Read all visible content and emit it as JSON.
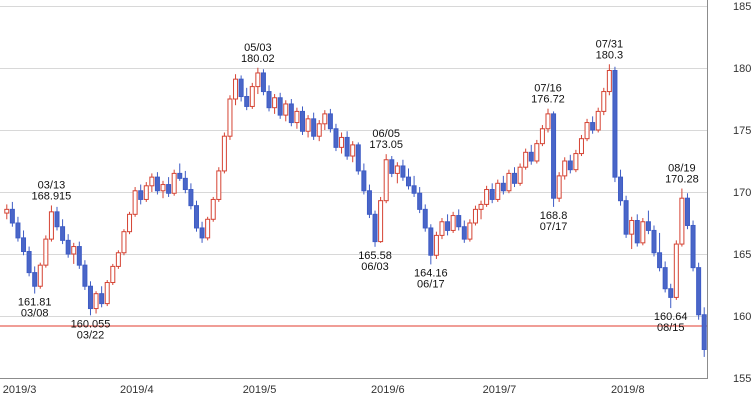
{
  "chart": {
    "background": "#ffffff",
    "up_color": "#d54333",
    "up_fill": "#ffffff",
    "down_color": "#3e5cc5",
    "down_fill": "#4a66c8",
    "grid_color": "#d8d8d8",
    "axis_color": "#8c8c8c",
    "text_color": "#333333",
    "annotation_color": "#111111",
    "price_line_color": "#e03b2e",
    "price_line_value": 159.2
  },
  "chart_data": {
    "type": "candlestick",
    "title": "",
    "xlabel": "",
    "ylabel": "",
    "ylim": [
      155,
      185
    ],
    "yticks": [
      155,
      160,
      165,
      170,
      175,
      180,
      185
    ],
    "x_axis": {
      "ticks": [
        {
          "label": "2019/3",
          "index": 0
        },
        {
          "label": "2019/4",
          "index": 21
        },
        {
          "label": "2019/5",
          "index": 43
        },
        {
          "label": "2019/6",
          "index": 66
        },
        {
          "label": "2019/7",
          "index": 86
        },
        {
          "label": "2019/8",
          "index": 109
        }
      ]
    },
    "candles": [
      [
        "03/01",
        168.3,
        169.0,
        167.8,
        168.6
      ],
      [
        "03/04",
        168.6,
        169.2,
        167.2,
        167.5
      ],
      [
        "03/05",
        167.5,
        168.0,
        166.0,
        166.3
      ],
      [
        "03/06",
        166.3,
        166.9,
        164.9,
        165.2
      ],
      [
        "03/07",
        165.2,
        165.6,
        163.2,
        163.5
      ],
      [
        "03/08",
        163.5,
        164.0,
        161.81,
        162.4
      ],
      [
        "03/11",
        162.4,
        164.3,
        162.2,
        164.1
      ],
      [
        "03/12",
        164.1,
        166.5,
        163.9,
        166.2
      ],
      [
        "03/13",
        166.2,
        168.915,
        166.0,
        168.4
      ],
      [
        "03/14",
        168.4,
        168.8,
        166.9,
        167.2
      ],
      [
        "03/15",
        167.2,
        167.8,
        165.8,
        166.1
      ],
      [
        "03/18",
        166.1,
        166.6,
        164.7,
        165.0
      ],
      [
        "03/19",
        165.0,
        165.9,
        164.2,
        165.6
      ],
      [
        "03/20",
        165.6,
        166.0,
        163.8,
        164.1
      ],
      [
        "03/21",
        164.1,
        164.5,
        162.1,
        162.4
      ],
      [
        "03/22",
        162.4,
        162.8,
        160.055,
        160.6
      ],
      [
        "03/25",
        160.6,
        162.0,
        160.2,
        161.8
      ],
      [
        "03/26",
        161.8,
        162.4,
        160.7,
        161.0
      ],
      [
        "03/27",
        161.0,
        162.9,
        160.8,
        162.7
      ],
      [
        "03/28",
        162.7,
        164.2,
        162.5,
        164.0
      ],
      [
        "03/29",
        164.0,
        165.3,
        163.8,
        165.1
      ],
      [
        "04/01",
        165.1,
        167.0,
        164.9,
        166.8
      ],
      [
        "04/02",
        166.8,
        168.4,
        166.6,
        168.2
      ],
      [
        "04/03",
        168.2,
        170.4,
        168.0,
        170.1
      ],
      [
        "04/04",
        170.1,
        170.6,
        169.0,
        169.4
      ],
      [
        "04/05",
        169.4,
        170.8,
        169.2,
        170.5
      ],
      [
        "04/08",
        170.5,
        171.5,
        170.0,
        171.2
      ],
      [
        "04/09",
        171.2,
        171.6,
        169.8,
        170.1
      ],
      [
        "04/10",
        170.1,
        170.9,
        169.5,
        170.6
      ],
      [
        "04/11",
        170.6,
        171.2,
        169.6,
        169.9
      ],
      [
        "04/12",
        169.9,
        171.8,
        169.7,
        171.5
      ],
      [
        "04/15",
        171.5,
        172.3,
        170.9,
        171.1
      ],
      [
        "04/16",
        171.1,
        171.7,
        169.9,
        170.2
      ],
      [
        "04/17",
        170.2,
        170.7,
        168.6,
        168.9
      ],
      [
        "04/18",
        168.9,
        169.3,
        166.8,
        167.1
      ],
      [
        "04/19",
        167.1,
        167.6,
        165.9,
        166.3
      ],
      [
        "04/22",
        166.3,
        168.0,
        166.1,
        167.8
      ],
      [
        "04/23",
        167.8,
        169.6,
        167.6,
        169.4
      ],
      [
        "04/24",
        169.4,
        172.0,
        169.2,
        171.7
      ],
      [
        "04/25",
        171.7,
        174.8,
        171.5,
        174.5
      ],
      [
        "04/26",
        174.5,
        177.8,
        174.2,
        177.5
      ],
      [
        "04/29",
        177.5,
        179.5,
        177.0,
        179.1
      ],
      [
        "04/30",
        179.1,
        179.4,
        177.3,
        177.7
      ],
      [
        "05/01",
        177.7,
        178.4,
        176.6,
        176.9
      ],
      [
        "05/02",
        176.9,
        178.8,
        176.7,
        178.5
      ],
      [
        "05/03",
        178.5,
        180.02,
        177.9,
        179.6
      ],
      [
        "05/06",
        179.6,
        179.9,
        177.8,
        178.1
      ],
      [
        "05/07",
        178.1,
        178.6,
        176.5,
        176.8
      ],
      [
        "05/08",
        176.8,
        177.9,
        176.3,
        177.6
      ],
      [
        "05/09",
        177.6,
        178.0,
        175.9,
        176.2
      ],
      [
        "05/10",
        176.2,
        177.4,
        175.7,
        177.1
      ],
      [
        "05/13",
        177.1,
        177.5,
        175.3,
        175.6
      ],
      [
        "05/14",
        175.6,
        176.8,
        175.1,
        176.5
      ],
      [
        "05/15",
        176.5,
        176.9,
        174.6,
        174.9
      ],
      [
        "05/16",
        174.9,
        176.2,
        174.4,
        175.9
      ],
      [
        "05/17",
        175.9,
        176.4,
        174.2,
        174.5
      ],
      [
        "05/20",
        174.5,
        175.8,
        174.1,
        175.5
      ],
      [
        "05/21",
        175.5,
        176.6,
        175.0,
        176.3
      ],
      [
        "05/22",
        176.3,
        176.7,
        174.8,
        175.1
      ],
      [
        "05/23",
        175.1,
        175.5,
        173.3,
        173.6
      ],
      [
        "05/24",
        173.6,
        174.8,
        173.1,
        174.4
      ],
      [
        "05/27",
        174.4,
        174.9,
        172.6,
        172.9
      ],
      [
        "05/28",
        172.9,
        174.1,
        172.4,
        173.8
      ],
      [
        "05/29",
        173.8,
        174.0,
        171.4,
        171.7
      ],
      [
        "05/30",
        171.7,
        172.3,
        169.8,
        170.1
      ],
      [
        "05/31",
        170.1,
        170.6,
        167.9,
        168.2
      ],
      [
        "06/03",
        168.2,
        168.5,
        165.58,
        166.0
      ],
      [
        "06/04",
        166.0,
        169.6,
        165.9,
        169.3
      ],
      [
        "06/05",
        169.3,
        173.05,
        169.1,
        172.6
      ],
      [
        "06/06",
        172.6,
        172.9,
        171.2,
        171.5
      ],
      [
        "06/07",
        171.5,
        172.4,
        170.7,
        172.1
      ],
      [
        "06/10",
        172.1,
        172.6,
        170.9,
        171.2
      ],
      [
        "06/11",
        171.2,
        171.9,
        170.2,
        170.5
      ],
      [
        "06/12",
        170.5,
        171.3,
        169.6,
        169.9
      ],
      [
        "06/13",
        169.9,
        170.4,
        168.3,
        168.6
      ],
      [
        "06/14",
        168.6,
        169.0,
        166.8,
        167.1
      ],
      [
        "06/17",
        167.1,
        167.4,
        164.16,
        164.9
      ],
      [
        "06/18",
        164.9,
        166.8,
        164.6,
        166.5
      ],
      [
        "06/19",
        166.5,
        167.9,
        166.2,
        167.6
      ],
      [
        "06/20",
        167.6,
        168.2,
        166.5,
        166.9
      ],
      [
        "06/21",
        166.9,
        168.4,
        166.7,
        168.1
      ],
      [
        "06/24",
        168.1,
        168.6,
        166.9,
        167.2
      ],
      [
        "06/25",
        167.2,
        167.7,
        165.9,
        166.2
      ],
      [
        "06/26",
        166.2,
        167.8,
        166.0,
        167.5
      ],
      [
        "06/27",
        167.5,
        168.9,
        167.3,
        168.6
      ],
      [
        "06/28",
        168.6,
        169.3,
        167.8,
        169.0
      ],
      [
        "07/01",
        169.0,
        170.5,
        168.8,
        170.2
      ],
      [
        "07/02",
        170.2,
        170.7,
        169.1,
        169.4
      ],
      [
        "07/03",
        169.4,
        171.0,
        169.2,
        170.7
      ],
      [
        "07/04",
        170.7,
        171.3,
        169.8,
        170.1
      ],
      [
        "07/05",
        170.1,
        171.8,
        169.9,
        171.5
      ],
      [
        "07/08",
        171.5,
        172.0,
        170.4,
        170.7
      ],
      [
        "07/09",
        170.7,
        172.3,
        170.5,
        172.0
      ],
      [
        "07/10",
        172.0,
        173.5,
        171.8,
        173.2
      ],
      [
        "07/11",
        173.2,
        173.8,
        172.2,
        172.5
      ],
      [
        "07/12",
        172.5,
        174.2,
        172.3,
        173.9
      ],
      [
        "07/15",
        173.9,
        175.4,
        173.7,
        175.1
      ],
      [
        "07/16",
        175.1,
        176.72,
        174.8,
        176.3
      ],
      [
        "07/17",
        176.3,
        176.5,
        168.8,
        169.5
      ],
      [
        "07/18",
        169.5,
        171.6,
        169.2,
        171.3
      ],
      [
        "07/19",
        171.3,
        172.8,
        171.0,
        172.5
      ],
      [
        "07/22",
        172.5,
        173.0,
        171.5,
        171.8
      ],
      [
        "07/23",
        171.8,
        173.4,
        171.6,
        173.1
      ],
      [
        "07/24",
        173.1,
        174.6,
        172.9,
        174.3
      ],
      [
        "07/25",
        174.3,
        175.9,
        174.1,
        175.6
      ],
      [
        "07/26",
        175.6,
        176.1,
        174.7,
        175.0
      ],
      [
        "07/29",
        175.0,
        176.8,
        174.8,
        176.5
      ],
      [
        "07/30",
        176.5,
        178.4,
        176.2,
        178.1
      ],
      [
        "07/31",
        178.1,
        180.3,
        177.8,
        179.8
      ],
      [
        "08/01",
        179.8,
        180.1,
        170.8,
        171.2
      ],
      [
        "08/02",
        171.2,
        171.8,
        168.9,
        169.3
      ],
      [
        "08/05",
        169.3,
        169.7,
        166.3,
        166.6
      ],
      [
        "08/06",
        166.6,
        168.0,
        165.4,
        167.7
      ],
      [
        "08/07",
        167.7,
        168.2,
        165.6,
        165.9
      ],
      [
        "08/08",
        165.9,
        167.9,
        165.7,
        167.6
      ],
      [
        "08/09",
        167.6,
        168.5,
        166.6,
        166.9
      ],
      [
        "08/12",
        166.9,
        167.3,
        164.8,
        165.1
      ],
      [
        "08/13",
        165.1,
        166.7,
        163.6,
        163.9
      ],
      [
        "08/14",
        163.9,
        164.4,
        161.9,
        162.2
      ],
      [
        "08/15",
        162.2,
        162.6,
        160.64,
        161.5
      ],
      [
        "08/16",
        161.5,
        166.1,
        161.3,
        165.8
      ],
      [
        "08/19",
        165.8,
        170.28,
        165.6,
        169.5
      ],
      [
        "08/20",
        169.5,
        169.9,
        167.0,
        167.3
      ],
      [
        "08/21",
        167.3,
        167.7,
        163.6,
        163.9
      ],
      [
        "08/22",
        163.9,
        164.3,
        159.7,
        160.1
      ],
      [
        "08/23",
        160.1,
        160.7,
        156.7,
        157.3
      ]
    ],
    "annotations": [
      {
        "date": "03/13",
        "lines": [
          "03/13",
          "168.915"
        ],
        "position": "above"
      },
      {
        "date": "03/08",
        "lines": [
          "161.81",
          "03/08"
        ],
        "position": "below"
      },
      {
        "date": "03/22",
        "lines": [
          "160.055",
          "03/22"
        ],
        "position": "below"
      },
      {
        "date": "05/03",
        "lines": [
          "05/03",
          "180.02"
        ],
        "position": "above"
      },
      {
        "date": "06/05",
        "lines": [
          "06/05",
          "173.05"
        ],
        "position": "above"
      },
      {
        "date": "06/03",
        "lines": [
          "165.58",
          "06/03"
        ],
        "position": "below"
      },
      {
        "date": "06/17",
        "lines": [
          "164.16",
          "06/17"
        ],
        "position": "below"
      },
      {
        "date": "07/16",
        "lines": [
          "07/16",
          "176.72"
        ],
        "position": "above"
      },
      {
        "date": "07/17",
        "lines": [
          "168.8",
          "07/17"
        ],
        "position": "below"
      },
      {
        "date": "07/31",
        "lines": [
          "07/31",
          "180.3"
        ],
        "position": "above"
      },
      {
        "date": "08/19",
        "lines": [
          "08/19",
          "170.28"
        ],
        "position": "above"
      },
      {
        "date": "08/15",
        "lines": [
          "160.64",
          "08/15"
        ],
        "position": "below"
      }
    ]
  }
}
